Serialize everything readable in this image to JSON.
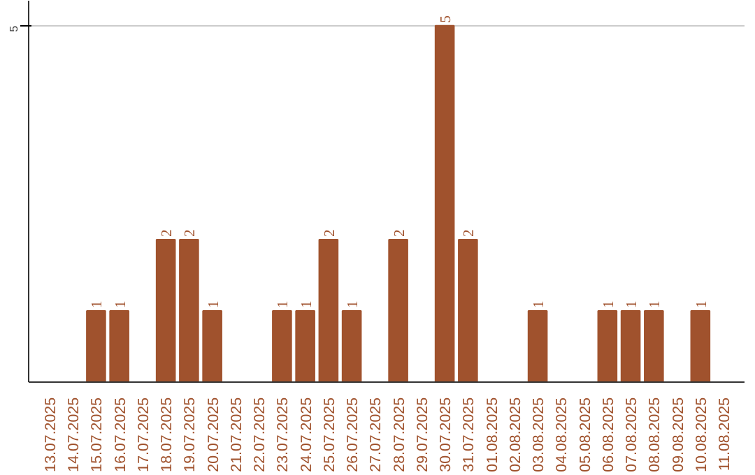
{
  "chart_data": {
    "type": "bar",
    "color": "#a0522d",
    "categories": [
      "13.07.2025",
      "14.07.2025",
      "15.07.2025",
      "16.07.2025",
      "17.07.2025",
      "18.07.2025",
      "19.07.2025",
      "20.07.2025",
      "21.07.2025",
      "22.07.2025",
      "23.07.2025",
      "24.07.2025",
      "25.07.2025",
      "26.07.2025",
      "27.07.2025",
      "28.07.2025",
      "29.07.2025",
      "30.07.2025",
      "31.07.2025",
      "01.08.2025",
      "02.08.2025",
      "03.08.2025",
      "04.08.2025",
      "05.08.2025",
      "06.08.2025",
      "07.08.2025",
      "08.08.2025",
      "09.08.2025",
      "10.08.2025",
      "11.08.2025"
    ],
    "values": [
      0,
      0,
      1,
      1,
      0,
      2,
      2,
      1,
      0,
      0,
      1,
      1,
      2,
      1,
      0,
      2,
      0,
      5,
      2,
      0,
      0,
      1,
      0,
      0,
      1,
      1,
      1,
      0,
      1,
      0
    ],
    "value_labels": [
      null,
      null,
      "1",
      "1",
      null,
      "2",
      "2",
      "1",
      null,
      null,
      "1",
      "1",
      "2",
      "1",
      null,
      "2",
      null,
      "5",
      "2",
      null,
      null,
      "1",
      null,
      null,
      "1",
      "1",
      "1",
      null,
      "1",
      null
    ],
    "ylim": [
      0,
      5.35
    ],
    "yticks": [
      5
    ],
    "grid": "y"
  }
}
